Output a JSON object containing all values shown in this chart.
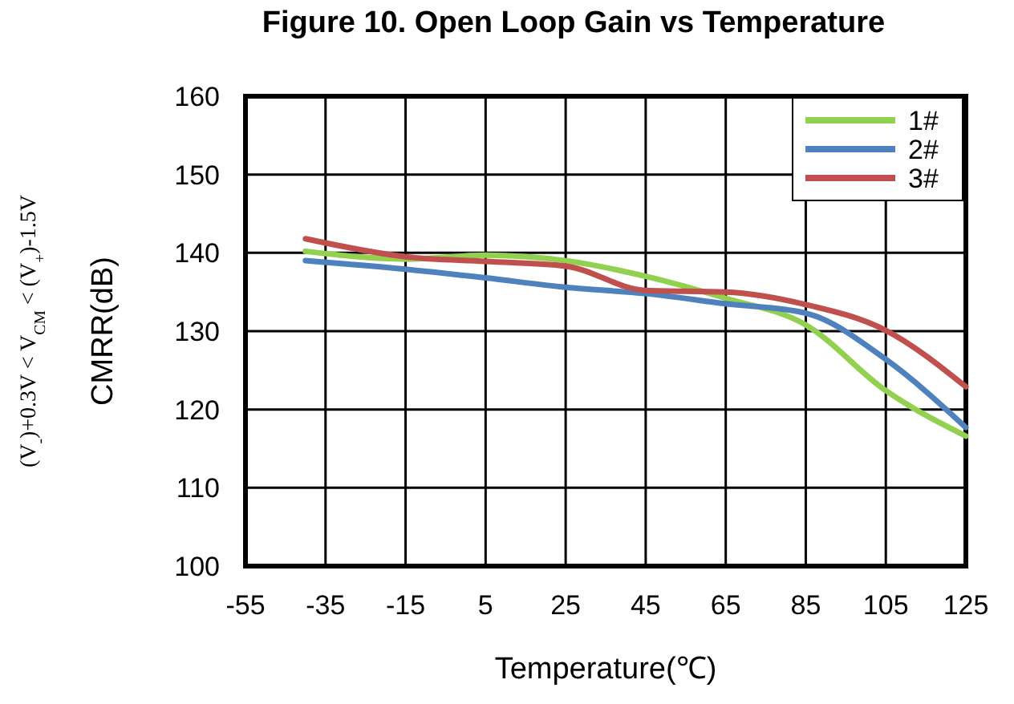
{
  "chart_data": {
    "type": "line",
    "title": "Figure 10. Open Loop Gain vs Temperature",
    "xlabel": "Temperature(℃)",
    "ylabel": "CMRR(dB)",
    "annotations": [
      "(V$_{-}$)+0.3V < V$_{CM}$ < (V$_{+}$)-1.5V"
    ],
    "x": [
      -40,
      -15,
      5,
      25,
      45,
      65,
      85,
      105,
      125
    ],
    "series": [
      {
        "name": "1#",
        "color": "#92d050",
        "values": [
          140.2,
          139.2,
          139.7,
          139,
          137,
          134.2,
          130.8,
          122.4,
          116.6
        ]
      },
      {
        "name": "2#",
        "color": "#4f81bd",
        "values": [
          139,
          137.9,
          136.8,
          135.6,
          134.8,
          133.5,
          132.3,
          126.4,
          117.7
        ]
      },
      {
        "name": "3#",
        "color": "#c0504d",
        "values": [
          141.8,
          139.5,
          138.9,
          138.3,
          135.2,
          135,
          133.4,
          130.1,
          122.9
        ]
      }
    ],
    "xlim": [
      -55,
      125
    ],
    "xticks": [
      -55,
      -35,
      -15,
      5,
      25,
      45,
      65,
      85,
      105,
      125
    ],
    "ylim": [
      100,
      160
    ],
    "yticks": [
      100,
      110,
      120,
      130,
      140,
      150,
      160
    ],
    "grid": true,
    "legend": "top right",
    "marker": "none",
    "line_style": "solid"
  }
}
